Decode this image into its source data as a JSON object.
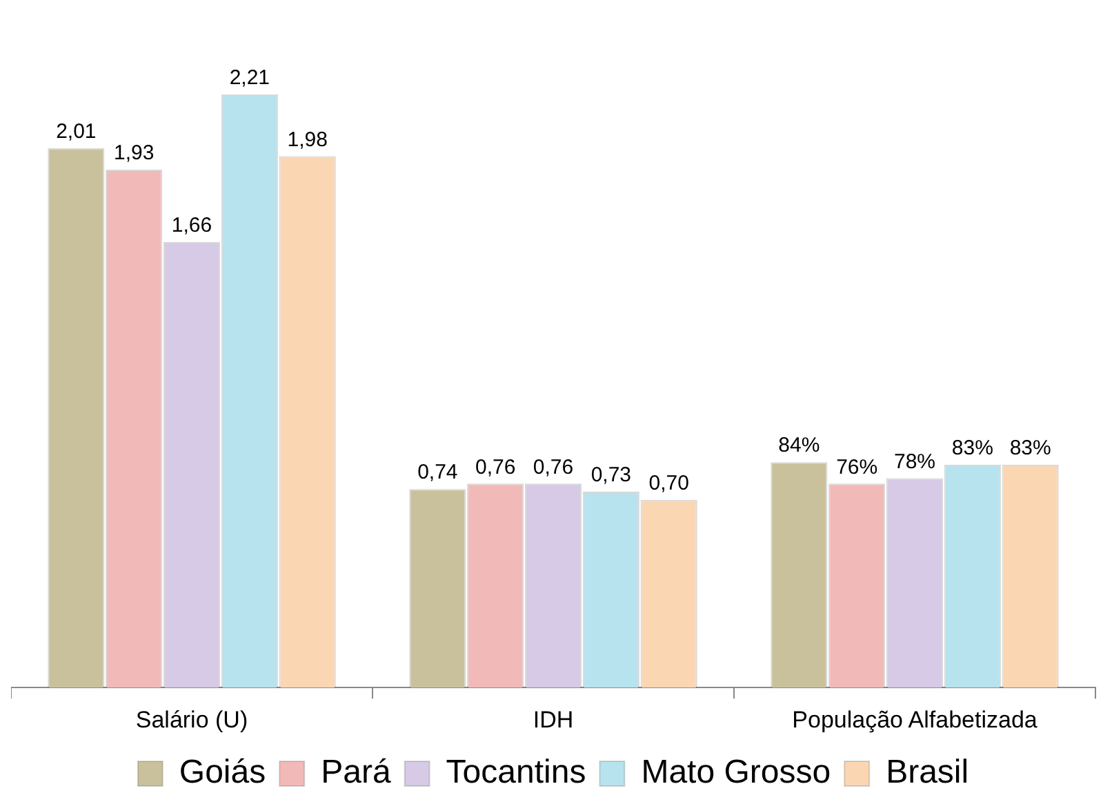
{
  "chart_data": {
    "type": "bar",
    "categories": [
      "Salário (U)",
      "IDH",
      "População Alfabetizada"
    ],
    "series": [
      {
        "name": "Goiás",
        "color": "#c9c19b",
        "values": [
          2.01,
          0.74,
          0.84
        ],
        "value_labels": [
          "2,01",
          "0,74",
          "84%"
        ]
      },
      {
        "name": "Pará",
        "color": "#f2b9b9",
        "values": [
          1.93,
          0.76,
          0.76
        ],
        "value_labels": [
          "1,93",
          "0,76",
          "76%"
        ]
      },
      {
        "name": "Tocantins",
        "color": "#d6cae6",
        "values": [
          1.66,
          0.76,
          0.78
        ],
        "value_labels": [
          "1,66",
          "0,76",
          "78%"
        ]
      },
      {
        "name": "Mato Grosso",
        "color": "#b6e3ed",
        "values": [
          2.21,
          0.73,
          0.83
        ],
        "value_labels": [
          "2,21",
          "0,73",
          "83%"
        ]
      },
      {
        "name": "Brasil",
        "color": "#fbd6b2",
        "values": [
          1.98,
          0.7,
          0.83
        ],
        "value_labels": [
          "1,98",
          "0,70",
          "83%"
        ]
      }
    ],
    "grid": false,
    "legend": "bottom"
  }
}
